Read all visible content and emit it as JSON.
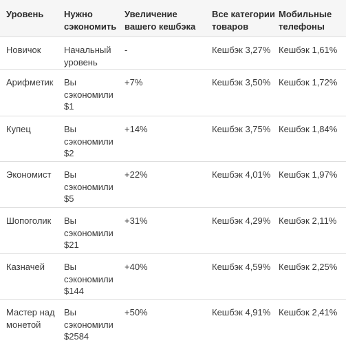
{
  "table": {
    "headers": [
      "Уровень",
      "Нужно сэкономить",
      "Увеличение вашего кешбэка",
      "Все категории товаров",
      "Мобильные телефоны"
    ],
    "rows": [
      [
        "Новичок",
        "Начальный уровень",
        "-",
        "Кешбэк 3,27%",
        "Кешбэк 1,61%"
      ],
      [
        "Арифметик",
        "Вы сэкономили $1",
        "+7%",
        "Кешбэк 3,50%",
        "Кешбэк 1,72%"
      ],
      [
        "Купец",
        "Вы сэкономили $2",
        "+14%",
        "Кешбэк 3,75%",
        "Кешбэк 1,84%"
      ],
      [
        "Экономист",
        "Вы сэкономили $5",
        "+22%",
        "Кешбэк 4,01%",
        "Кешбэк 1,97%"
      ],
      [
        "Шопоголик",
        "Вы сэкономили $21",
        "+31%",
        "Кешбэк 4,29%",
        "Кешбэк 2,11%"
      ],
      [
        "Казначей",
        "Вы сэкономили $144",
        "+40%",
        "Кешбэк 4,59%",
        "Кешбэк 2,25%"
      ],
      [
        "Мастер над монетой",
        "Вы сэкономили $2584",
        "+50%",
        "Кешбэк 4,91%",
        "Кешбэк 2,41%"
      ]
    ]
  }
}
